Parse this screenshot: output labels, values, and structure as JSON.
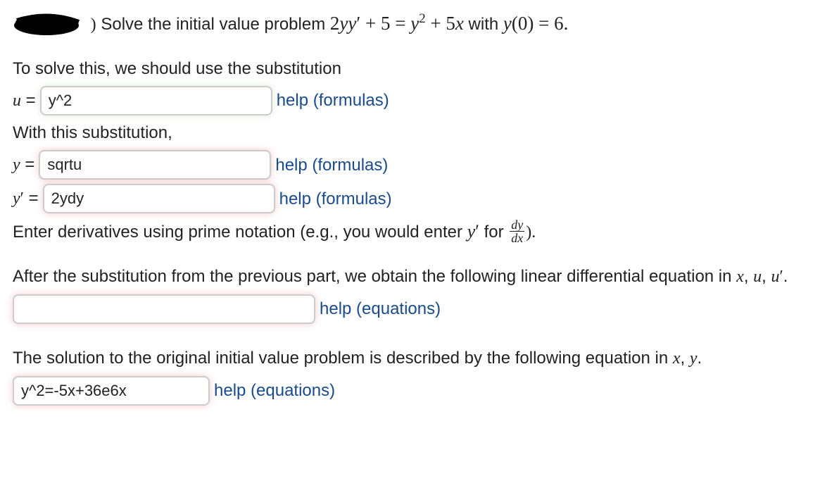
{
  "prompt": {
    "lead": "Solve the initial value problem",
    "equation_html": "2<span class='math'>yy</span><span class='mathup'>′</span> + 5 = <span class='math'>y</span><sup><span class='mathup'>2</span></sup> + 5<span class='math'>x</span>",
    "with": "with",
    "ic_html": "<span class='math'>y</span>(0) = 6."
  },
  "sub_intro": "To solve this, we should use the substitution",
  "u": {
    "label_html": "<span class='math'>u</span> =",
    "value": "y^2",
    "status": "correct",
    "help": "help (formulas)",
    "input_width": 330
  },
  "with_sub": "With this substitution,",
  "y": {
    "label_html": "<span class='math'>y</span> =",
    "value": "sqrtu",
    "status": "incorrect",
    "help": "help (formulas)",
    "input_width": 330
  },
  "yprime": {
    "label_html": "<span class='math'>y</span><span class='mathup'>′</span> =",
    "value": "2ydy",
    "status": "incorrect",
    "help": "help (formulas)",
    "input_width": 330
  },
  "deriv_note": {
    "pre": "Enter derivatives using prime notation (e.g., you would enter",
    "mid_html": "<span class='math'>y</span><span class='mathup'>′</span>",
    "for": "for",
    "post": ")."
  },
  "linear_intro_html": "After the substitution from the previous part, we obtain the following linear differential equation in <span class='math'>x</span>, <span class='math'>u</span>, <span class='math'>u</span><span class='mathup'>′</span>.",
  "linear_eq": {
    "value": "",
    "status": "incorrect",
    "help": "help (equations)",
    "input_width": 430
  },
  "solution_intro_html": "The solution to the original initial value problem is described by the following equation in <span class='math'>x</span>, <span class='math'>y</span>.",
  "solution": {
    "value": "y^2=-5x+36e6x",
    "status": "incorrect",
    "help": "help (equations)",
    "input_width": 280
  }
}
